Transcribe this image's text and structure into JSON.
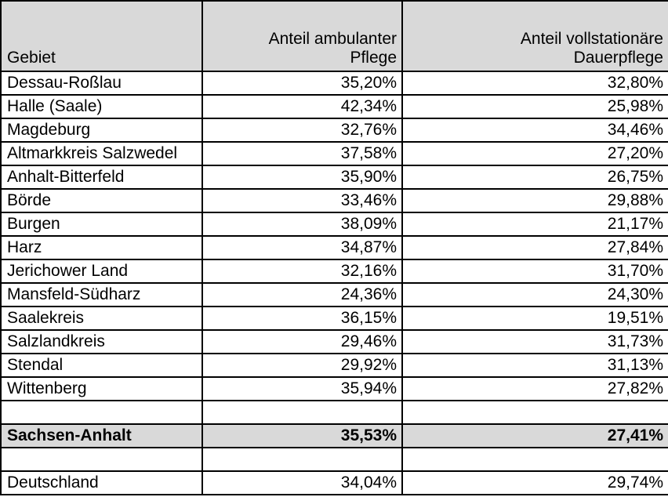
{
  "table": {
    "headers": [
      {
        "label": "Gebiet",
        "align": "left"
      },
      {
        "label": "Anteil ambulanter\nPflege",
        "align": "right"
      },
      {
        "label": "Anteil vollstationäre\nDauerpflege",
        "align": "right"
      }
    ],
    "rows": [
      {
        "gebiet": "Dessau-Roßlau",
        "ambulant": "35,20%",
        "stationaer": "32,80%",
        "style": "normal"
      },
      {
        "gebiet": "Halle (Saale)",
        "ambulant": "42,34%",
        "stationaer": "25,98%",
        "style": "normal"
      },
      {
        "gebiet": "Magdeburg",
        "ambulant": "32,76%",
        "stationaer": "34,46%",
        "style": "normal"
      },
      {
        "gebiet": "Altmarkkreis Salzwedel",
        "ambulant": "37,58%",
        "stationaer": "27,20%",
        "style": "normal"
      },
      {
        "gebiet": "Anhalt-Bitterfeld",
        "ambulant": "35,90%",
        "stationaer": "26,75%",
        "style": "normal"
      },
      {
        "gebiet": "Börde",
        "ambulant": "33,46%",
        "stationaer": "29,88%",
        "style": "normal"
      },
      {
        "gebiet": "Burgen",
        "ambulant": "38,09%",
        "stationaer": "21,17%",
        "style": "normal"
      },
      {
        "gebiet": "Harz",
        "ambulant": "34,87%",
        "stationaer": "27,84%",
        "style": "normal"
      },
      {
        "gebiet": "Jerichower Land",
        "ambulant": "32,16%",
        "stationaer": "31,70%",
        "style": "normal"
      },
      {
        "gebiet": "Mansfeld-Südharz",
        "ambulant": "24,36%",
        "stationaer": "24,30%",
        "style": "normal"
      },
      {
        "gebiet": "Saalekreis",
        "ambulant": "36,15%",
        "stationaer": "19,51%",
        "style": "normal"
      },
      {
        "gebiet": "Salzlandkreis",
        "ambulant": "29,46%",
        "stationaer": "31,73%",
        "style": "normal"
      },
      {
        "gebiet": "Stendal",
        "ambulant": "29,92%",
        "stationaer": "31,13%",
        "style": "normal"
      },
      {
        "gebiet": "Wittenberg",
        "ambulant": "35,94%",
        "stationaer": "27,82%",
        "style": "normal"
      },
      {
        "gebiet": "",
        "ambulant": "",
        "stationaer": "",
        "style": "empty"
      },
      {
        "gebiet": "Sachsen-Anhalt",
        "ambulant": "35,53%",
        "stationaer": "27,41%",
        "style": "summary"
      },
      {
        "gebiet": "",
        "ambulant": "",
        "stationaer": "",
        "style": "empty"
      },
      {
        "gebiet": "Deutschland",
        "ambulant": "34,04%",
        "stationaer": "29,74%",
        "style": "normal"
      }
    ],
    "colors": {
      "header_bg": "#d9d9d9",
      "summary_bg": "#d9d9d9",
      "border": "#000000",
      "background": "#ffffff"
    }
  }
}
